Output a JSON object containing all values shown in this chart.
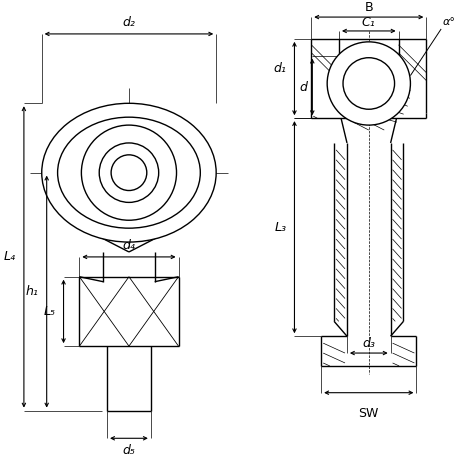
{
  "bg_color": "#ffffff",
  "line_color": "#000000",
  "figsize": [
    4.63,
    4.7
  ],
  "dpi": 100,
  "labels": {
    "d2": "d₂",
    "d1": "d₁",
    "d": "d",
    "d3": "d₃",
    "d4": "d₄",
    "d5": "d₅",
    "L4": "L₄",
    "h1": "h₁",
    "L5": "L₅",
    "L3": "L₃",
    "B": "B",
    "C1": "C₁",
    "SW": "SW",
    "alpha": "α°"
  }
}
